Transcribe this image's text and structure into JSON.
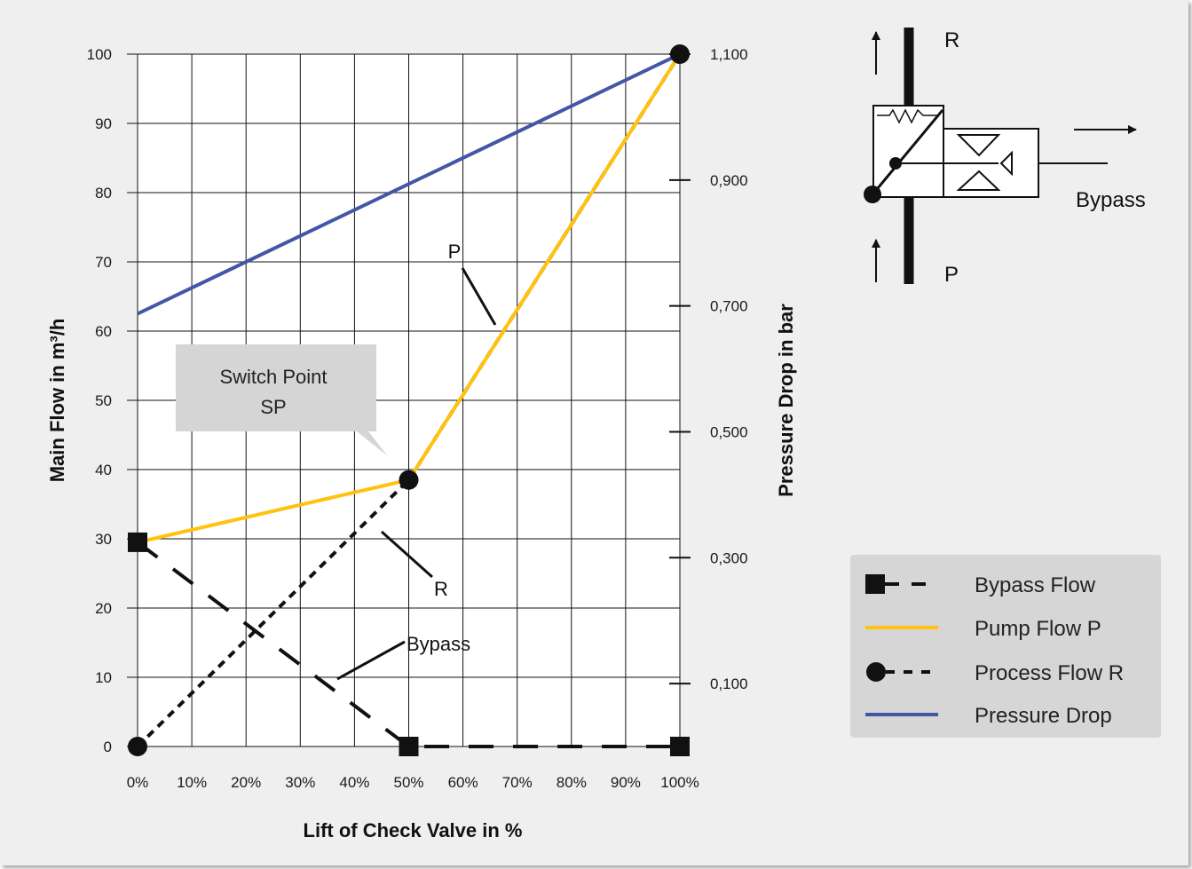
{
  "chart_data": {
    "type": "line",
    "xlabel": "Lift of Check Valve in %",
    "ylabel": "Main Flow in m³/h",
    "y2label": "Pressure Drop in bar",
    "x_ticks": [
      "0%",
      "10%",
      "20%",
      "30%",
      "40%",
      "50%",
      "60%",
      "70%",
      "80%",
      "90%",
      "100%"
    ],
    "y_ticks": [
      "0",
      "10",
      "20",
      "30",
      "40",
      "50",
      "60",
      "70",
      "80",
      "90",
      "100"
    ],
    "y2_ticks": [
      "0,100",
      "0,300",
      "0,500",
      "0,700",
      "0,900",
      "1,100"
    ],
    "y2_tick_values": [
      0.1,
      0.3,
      0.5,
      0.7,
      0.9,
      1.1
    ],
    "xlim": [
      0,
      100
    ],
    "ylim": [
      0,
      100
    ],
    "y2lim": [
      0,
      1.1
    ],
    "grid": true,
    "series": [
      {
        "name": "Bypass Flow",
        "x": [
          0,
          50,
          100
        ],
        "y": [
          29.5,
          0,
          0
        ],
        "color": "#111111",
        "style": "dashed",
        "marker": "square"
      },
      {
        "name": "Pump Flow P",
        "x": [
          0,
          50,
          100
        ],
        "y": [
          29.5,
          38.5,
          100
        ],
        "color": "#ffc20e",
        "style": "solid",
        "marker": "none"
      },
      {
        "name": "Process Flow R",
        "x": [
          0,
          50,
          100
        ],
        "y": [
          0,
          38.5,
          100
        ],
        "color": "#111111",
        "style": "dotted",
        "marker": "circle"
      },
      {
        "name": "Pressure Drop",
        "x": [
          0,
          100
        ],
        "y": [
          62.5,
          100
        ],
        "color": "#4456a6",
        "style": "solid",
        "marker": "none"
      }
    ],
    "annotations": {
      "callout_line1": "Switch Point",
      "callout_line2": "SP",
      "label_p": "P",
      "label_r": "R",
      "label_bypass": "Bypass"
    },
    "legend_placement": "right"
  },
  "diagram": {
    "label_r": "R",
    "label_p": "P",
    "label_bypass": "Bypass"
  }
}
